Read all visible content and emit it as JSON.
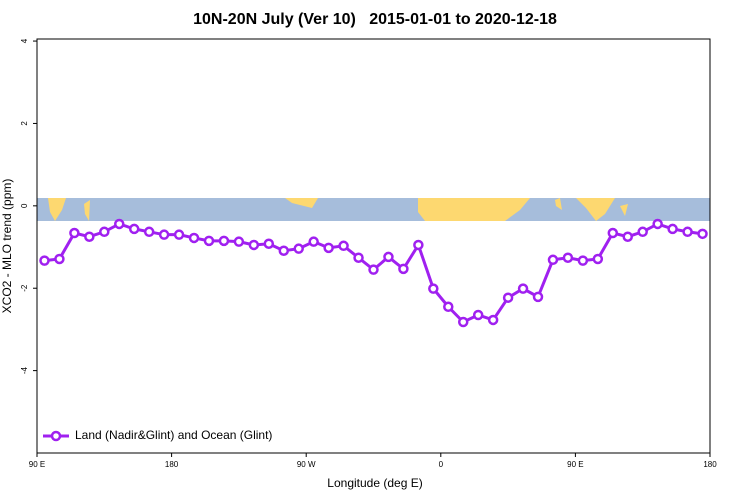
{
  "chart_data": {
    "type": "line",
    "title": "10N-20N July (Ver 10)   2015-01-01 to 2020-12-18",
    "x_label": "Longitude (deg E)",
    "y_label": "XCO2 - MLO trend (ppm)",
    "x": [
      95,
      105,
      115,
      125,
      135,
      145,
      155,
      165,
      175,
      185,
      195,
      205,
      215,
      225,
      235,
      245,
      255,
      265,
      275,
      285,
      295,
      305,
      315,
      325,
      335,
      345,
      355,
      365,
      375,
      385,
      395,
      405,
      415,
      425,
      435,
      445,
      455,
      465,
      475,
      485,
      495,
      505,
      515,
      525,
      535
    ],
    "series": [
      {
        "name": "Land (Nadir&Glint) and Ocean (Glint)",
        "color": "#a020f0",
        "values": [
          -1.33,
          -1.29,
          -0.66,
          -0.75,
          -0.63,
          -0.44,
          -0.56,
          -0.63,
          -0.7,
          -0.7,
          -0.78,
          -0.85,
          -0.85,
          -0.87,
          -0.95,
          -0.92,
          -1.09,
          -1.04,
          -0.87,
          -1.02,
          -0.97,
          -1.26,
          -1.55,
          -1.24,
          -1.53,
          -0.95,
          -2.01,
          -2.45,
          -2.82,
          -2.65,
          -2.77,
          -2.23,
          -2.01,
          -2.21,
          -1.31,
          -1.26,
          -1.33,
          -1.29,
          -0.66,
          -0.75,
          -0.63,
          -0.44,
          -0.56,
          -0.63,
          -0.68
        ]
      }
    ],
    "xlim": [
      90,
      540
    ],
    "xticks": [
      {
        "value": 90,
        "label": "90 E"
      },
      {
        "value": 180,
        "label": "180"
      },
      {
        "value": 270,
        "label": "90 W"
      },
      {
        "value": 360,
        "label": "0"
      },
      {
        "value": 450,
        "label": "90 E"
      },
      {
        "value": 540,
        "label": "180"
      }
    ],
    "ylim": [
      -6,
      4.05
    ],
    "yticks": [
      -4,
      -2,
      0,
      2,
      4
    ],
    "legend": "bottom-left"
  }
}
